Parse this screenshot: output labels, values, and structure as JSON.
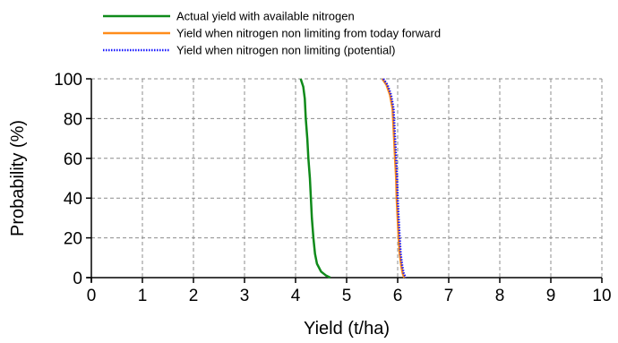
{
  "chart_data": {
    "type": "line",
    "xlabel": "Yield (t/ha)",
    "ylabel": "Probability (%)",
    "xlim": [
      0,
      10
    ],
    "ylim": [
      0,
      100
    ],
    "x_ticks": [
      "0",
      "1",
      "2",
      "3",
      "4",
      "5",
      "6",
      "7",
      "8",
      "9",
      "10"
    ],
    "y_ticks": [
      "0",
      "20",
      "40",
      "60",
      "80",
      "100"
    ],
    "grid": true,
    "legend_position": "top",
    "series": [
      {
        "name": "Actual yield with available nitrogen",
        "color": "#0f8a1a",
        "line_style": "solid",
        "points": [
          [
            4.1,
            100
          ],
          [
            4.15,
            96
          ],
          [
            4.18,
            90
          ],
          [
            4.2,
            80
          ],
          [
            4.23,
            70
          ],
          [
            4.25,
            60
          ],
          [
            4.28,
            50
          ],
          [
            4.3,
            40
          ],
          [
            4.32,
            30
          ],
          [
            4.35,
            20
          ],
          [
            4.38,
            12
          ],
          [
            4.42,
            7
          ],
          [
            4.5,
            3
          ],
          [
            4.6,
            1
          ],
          [
            4.68,
            0
          ]
        ]
      },
      {
        "name": "Yield when nitrogen non limiting from today forward",
        "color": "#ff8c1a",
        "line_style": "solid",
        "points": [
          [
            5.7,
            100
          ],
          [
            5.78,
            97
          ],
          [
            5.85,
            92
          ],
          [
            5.9,
            85
          ],
          [
            5.93,
            70
          ],
          [
            5.95,
            60
          ],
          [
            5.97,
            50
          ],
          [
            5.98,
            40
          ],
          [
            6.0,
            30
          ],
          [
            6.02,
            20
          ],
          [
            6.04,
            12
          ],
          [
            6.07,
            6
          ],
          [
            6.1,
            2
          ],
          [
            6.13,
            0
          ]
        ]
      },
      {
        "name": "Yield when nitrogen non limiting (potential)",
        "color": "#1a1aff",
        "line_style": "dotted",
        "points": [
          [
            5.72,
            100
          ],
          [
            5.8,
            97
          ],
          [
            5.87,
            92
          ],
          [
            5.92,
            85
          ],
          [
            5.95,
            70
          ],
          [
            5.97,
            60
          ],
          [
            5.99,
            50
          ],
          [
            6.0,
            40
          ],
          [
            6.02,
            30
          ],
          [
            6.04,
            20
          ],
          [
            6.06,
            12
          ],
          [
            6.09,
            6
          ],
          [
            6.12,
            2
          ],
          [
            6.16,
            0
          ]
        ]
      }
    ]
  }
}
